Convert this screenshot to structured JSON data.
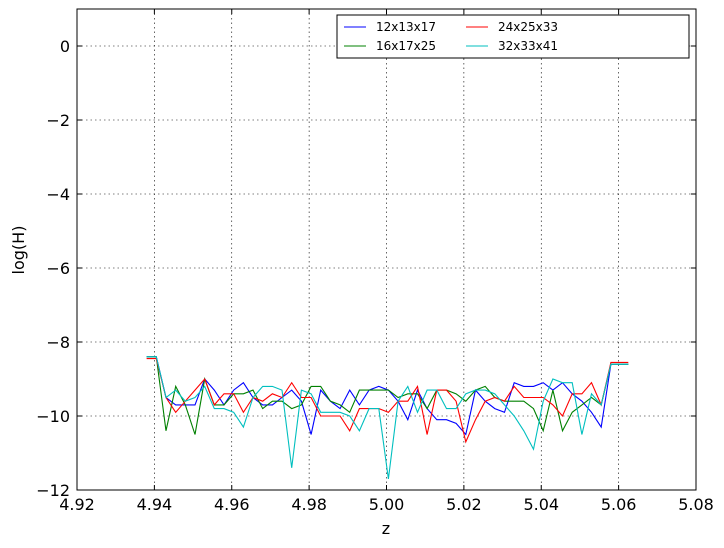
{
  "chart_data": {
    "type": "line",
    "title": "",
    "xlabel": "z",
    "ylabel": "log(H)",
    "xlim": [
      4.92,
      5.08
    ],
    "ylim": [
      -12,
      1
    ],
    "xticks": [
      4.92,
      4.94,
      4.96,
      4.98,
      5.0,
      5.02,
      5.04,
      5.06,
      5.08
    ],
    "xtick_labels": [
      "4.92",
      "4.94",
      "4.96",
      "4.98",
      "5.00",
      "5.02",
      "5.04",
      "5.06",
      "5.08"
    ],
    "yticks": [
      0,
      -2,
      -4,
      -6,
      -8,
      -10,
      -12
    ],
    "ytick_labels": [
      "0",
      "−2",
      "−4",
      "−6",
      "−8",
      "−10",
      "−12"
    ],
    "grid": true,
    "legend_position": "top-right",
    "series": [
      {
        "name": "12x13x17",
        "color": "#0000ff",
        "x": [
          4.938,
          4.9405,
          4.943,
          4.9455,
          4.948,
          4.9505,
          4.953,
          4.9555,
          4.958,
          4.9605,
          4.963,
          4.9655,
          4.968,
          4.9705,
          4.973,
          4.9755,
          4.978,
          4.9805,
          4.983,
          4.9855,
          4.988,
          4.9905,
          4.993,
          4.9955,
          4.998,
          5.0005,
          5.003,
          5.0055,
          5.008,
          5.0105,
          5.013,
          5.0155,
          5.018,
          5.0205,
          5.023,
          5.0255,
          5.028,
          5.0305,
          5.033,
          5.0355,
          5.038,
          5.0405,
          5.043,
          5.0455,
          5.048,
          5.0505,
          5.053,
          5.0555,
          5.058,
          5.0605,
          5.0625
        ],
        "y": [
          -8.4,
          -8.4,
          -9.5,
          -9.7,
          -9.7,
          -9.7,
          -9.0,
          -9.3,
          -9.7,
          -9.3,
          -9.1,
          -9.5,
          -9.7,
          -9.7,
          -9.5,
          -9.3,
          -9.6,
          -10.5,
          -9.3,
          -9.6,
          -9.8,
          -9.3,
          -9.7,
          -9.3,
          -9.2,
          -9.3,
          -9.6,
          -10.1,
          -9.3,
          -9.8,
          -10.1,
          -10.1,
          -10.2,
          -10.5,
          -9.3,
          -9.6,
          -9.8,
          -9.9,
          -9.1,
          -9.2,
          -9.2,
          -9.1,
          -9.3,
          -9.1,
          -9.4,
          -9.6,
          -9.9,
          -10.3,
          -8.6,
          -8.6,
          -8.6
        ]
      },
      {
        "name": "16x17x25",
        "color": "#008000",
        "x": [
          4.938,
          4.9405,
          4.943,
          4.9455,
          4.948,
          4.9505,
          4.953,
          4.9555,
          4.958,
          4.9605,
          4.963,
          4.9655,
          4.968,
          4.9705,
          4.973,
          4.9755,
          4.978,
          4.9805,
          4.983,
          4.9855,
          4.988,
          4.9905,
          4.993,
          4.9955,
          4.998,
          5.0005,
          5.003,
          5.0055,
          5.008,
          5.0105,
          5.013,
          5.0155,
          5.018,
          5.0205,
          5.023,
          5.0255,
          5.028,
          5.0305,
          5.033,
          5.0355,
          5.038,
          5.0405,
          5.043,
          5.0455,
          5.048,
          5.0505,
          5.053,
          5.0555,
          5.058,
          5.0605,
          5.0625
        ],
        "y": [
          -8.4,
          -8.4,
          -10.4,
          -9.2,
          -9.7,
          -10.5,
          -9.0,
          -9.7,
          -9.7,
          -9.4,
          -9.4,
          -9.3,
          -9.8,
          -9.6,
          -9.6,
          -9.8,
          -9.7,
          -9.2,
          -9.2,
          -9.6,
          -9.7,
          -9.9,
          -9.3,
          -9.3,
          -9.3,
          -9.3,
          -9.5,
          -9.4,
          -9.4,
          -9.8,
          -9.3,
          -9.3,
          -9.4,
          -9.6,
          -9.3,
          -9.2,
          -9.5,
          -9.6,
          -9.6,
          -9.6,
          -9.8,
          -10.4,
          -9.3,
          -10.4,
          -9.9,
          -9.7,
          -9.5,
          -9.7,
          -8.6,
          -8.6,
          -8.6
        ]
      },
      {
        "name": "24x25x33",
        "color": "#ff0000",
        "x": [
          4.938,
          4.9405,
          4.943,
          4.9455,
          4.948,
          4.9505,
          4.953,
          4.9555,
          4.958,
          4.9605,
          4.963,
          4.9655,
          4.968,
          4.9705,
          4.973,
          4.9755,
          4.978,
          4.9805,
          4.983,
          4.9855,
          4.988,
          4.9905,
          4.993,
          4.9955,
          4.998,
          5.0005,
          5.003,
          5.0055,
          5.008,
          5.0105,
          5.013,
          5.0155,
          5.018,
          5.0205,
          5.023,
          5.0255,
          5.028,
          5.0305,
          5.033,
          5.0355,
          5.038,
          5.0405,
          5.043,
          5.0455,
          5.048,
          5.0505,
          5.053,
          5.0555,
          5.058,
          5.0605,
          5.0625
        ],
        "y": [
          -8.45,
          -8.45,
          -9.5,
          -9.9,
          -9.6,
          -9.3,
          -9.0,
          -9.7,
          -9.4,
          -9.4,
          -9.9,
          -9.5,
          -9.6,
          -9.4,
          -9.5,
          -9.1,
          -9.5,
          -9.5,
          -10.0,
          -10.0,
          -10.0,
          -10.4,
          -9.8,
          -9.8,
          -9.8,
          -9.9,
          -9.6,
          -9.6,
          -9.2,
          -10.5,
          -9.3,
          -9.3,
          -9.6,
          -10.7,
          -10.1,
          -9.6,
          -9.5,
          -9.6,
          -9.2,
          -9.5,
          -9.5,
          -9.5,
          -9.7,
          -10.0,
          -9.4,
          -9.4,
          -9.1,
          -9.7,
          -8.55,
          -8.55,
          -8.55
        ]
      },
      {
        "name": "32x33x41",
        "color": "#00bfbf",
        "x": [
          4.938,
          4.9405,
          4.943,
          4.9455,
          4.948,
          4.9505,
          4.953,
          4.9555,
          4.958,
          4.9605,
          4.963,
          4.9655,
          4.968,
          4.9705,
          4.973,
          4.9755,
          4.978,
          4.9805,
          4.983,
          4.9855,
          4.988,
          4.9905,
          4.993,
          4.9955,
          4.998,
          5.0005,
          5.003,
          5.0055,
          5.008,
          5.0105,
          5.013,
          5.0155,
          5.018,
          5.0205,
          5.023,
          5.0255,
          5.028,
          5.0305,
          5.033,
          5.0355,
          5.038,
          5.0405,
          5.043,
          5.0455,
          5.048,
          5.0505,
          5.053,
          5.0555,
          5.058,
          5.0605,
          5.0625
        ],
        "y": [
          -8.4,
          -8.4,
          -9.5,
          -9.3,
          -9.6,
          -9.5,
          -9.2,
          -9.8,
          -9.8,
          -9.9,
          -10.3,
          -9.5,
          -9.2,
          -9.2,
          -9.3,
          -11.4,
          -9.3,
          -9.4,
          -9.9,
          -9.9,
          -9.9,
          -10.0,
          -10.4,
          -9.8,
          -9.8,
          -11.7,
          -9.6,
          -9.2,
          -9.9,
          -9.3,
          -9.3,
          -9.8,
          -9.8,
          -9.4,
          -9.3,
          -9.3,
          -9.4,
          -9.7,
          -10.0,
          -10.4,
          -10.9,
          -9.6,
          -9.0,
          -9.1,
          -9.1,
          -10.5,
          -9.4,
          -9.7,
          -8.6,
          -8.6,
          -8.6
        ]
      }
    ]
  }
}
